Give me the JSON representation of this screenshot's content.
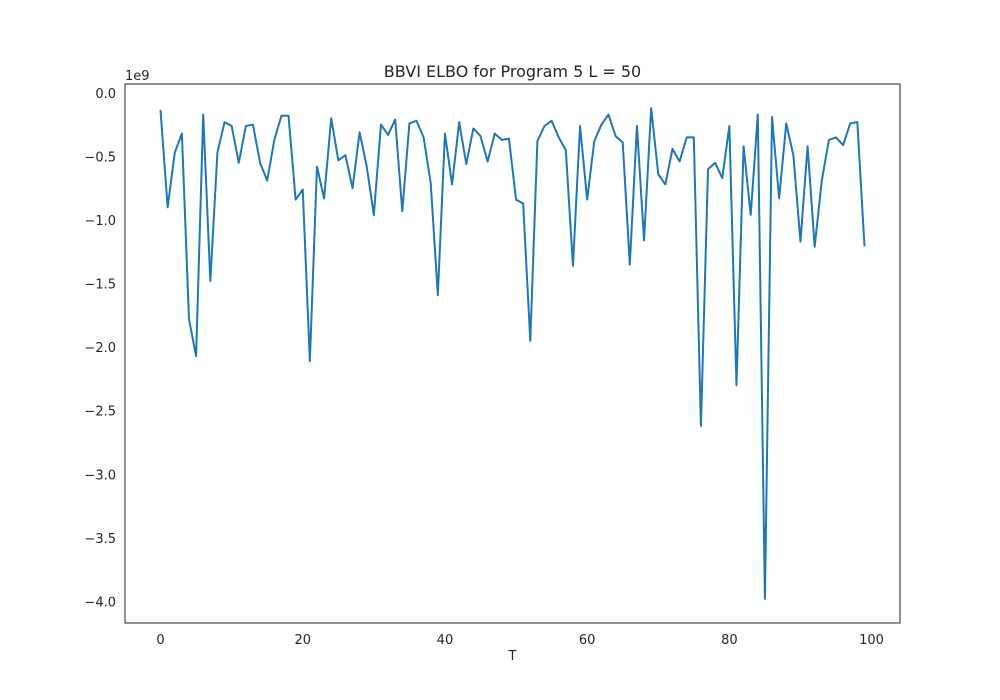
{
  "chart_data": {
    "type": "line",
    "title": "BBVI ELBO for Program 5   L = 50",
    "xlabel": "T",
    "ylabel": "",
    "y_offset_label": "1e9",
    "xlim": [
      -5,
      104
    ],
    "ylim": [
      -4.17,
      0.07
    ],
    "grid": false,
    "x_ticks": [
      0,
      20,
      40,
      60,
      80,
      100
    ],
    "y_ticks": [
      0.0,
      -0.5,
      -1.0,
      -1.5,
      -2.0,
      -2.5,
      -3.0,
      -3.5,
      -4.0
    ],
    "x_tick_labels": [
      "0",
      "20",
      "40",
      "60",
      "80",
      "100"
    ],
    "y_tick_labels": [
      "0.0",
      "−0.5",
      "−1.0",
      "−1.5",
      "−2.0",
      "−2.5",
      "−3.0",
      "−3.5",
      "−4.0"
    ],
    "series": [
      {
        "color": "#1f77b4",
        "x": [
          0,
          1,
          2,
          3,
          4,
          5,
          6,
          7,
          8,
          9,
          10,
          11,
          12,
          13,
          14,
          15,
          16,
          17,
          18,
          19,
          20,
          21,
          22,
          23,
          24,
          25,
          26,
          27,
          28,
          29,
          30,
          31,
          32,
          33,
          34,
          35,
          36,
          37,
          38,
          39,
          40,
          41,
          42,
          43,
          44,
          45,
          46,
          47,
          48,
          49,
          50,
          51,
          52,
          53,
          54,
          55,
          56,
          57,
          58,
          59,
          60,
          61,
          62,
          63,
          64,
          65,
          66,
          67,
          68,
          69,
          70,
          71,
          72,
          73,
          74,
          75,
          76,
          77,
          78,
          79,
          80,
          81,
          82,
          83,
          84,
          85,
          86,
          87,
          88,
          89,
          90,
          91,
          92,
          93,
          94,
          95,
          96,
          97,
          98,
          99
        ],
        "values": [
          -0.14,
          -0.9,
          -0.47,
          -0.32,
          -1.78,
          -2.07,
          -0.17,
          -1.48,
          -0.47,
          -0.23,
          -0.26,
          -0.55,
          -0.26,
          -0.25,
          -0.55,
          -0.69,
          -0.37,
          -0.18,
          -0.18,
          -0.84,
          -0.76,
          -2.11,
          -0.58,
          -0.83,
          -0.2,
          -0.53,
          -0.49,
          -0.75,
          -0.31,
          -0.58,
          -0.96,
          -0.25,
          -0.33,
          -0.21,
          -0.93,
          -0.24,
          -0.22,
          -0.35,
          -0.71,
          -1.59,
          -0.32,
          -0.72,
          -0.23,
          -0.56,
          -0.28,
          -0.34,
          -0.54,
          -0.32,
          -0.37,
          -0.36,
          -0.84,
          -0.87,
          -1.95,
          -0.38,
          -0.26,
          -0.22,
          -0.35,
          -0.45,
          -1.36,
          -0.26,
          -0.84,
          -0.38,
          -0.25,
          -0.17,
          -0.34,
          -0.39,
          -1.35,
          -0.26,
          -1.16,
          -0.12,
          -0.64,
          -0.72,
          -0.44,
          -0.54,
          -0.35,
          -0.35,
          -2.62,
          -0.6,
          -0.55,
          -0.67,
          -0.26,
          -2.3,
          -0.42,
          -0.96,
          -0.17,
          -3.98,
          -0.19,
          -0.83,
          -0.24,
          -0.49,
          -1.17,
          -0.42,
          -1.21,
          -0.69,
          -0.37,
          -0.35,
          -0.41,
          -0.24,
          -0.23,
          -1.2
        ]
      }
    ]
  }
}
